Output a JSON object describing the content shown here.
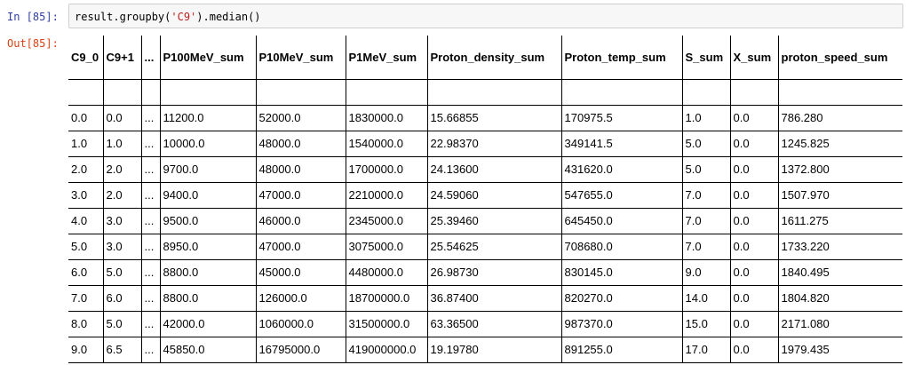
{
  "cell": {
    "in_prompt": "In [85]:",
    "out_prompt": "Out[85]:",
    "code_prefix": "result.groupby(",
    "code_string": "'C9'",
    "code_suffix": ").median()"
  },
  "table": {
    "columns": [
      "C9_0",
      "C9+1",
      "...",
      "P100MeV_sum",
      "P10MeV_sum",
      "P1MeV_sum",
      "Proton_density_sum",
      "Proton_temp_sum",
      "S_sum",
      "X_sum",
      "proton_speed_sum"
    ],
    "rows": [
      [
        "0.0",
        "0.0",
        "...",
        "11200.0",
        "52000.0",
        "1830000.0",
        "15.66855",
        "170975.5",
        "1.0",
        "0.0",
        "786.280"
      ],
      [
        "1.0",
        "1.0",
        "...",
        "10000.0",
        "48000.0",
        "1540000.0",
        "22.98370",
        "349141.5",
        "5.0",
        "0.0",
        "1245.825"
      ],
      [
        "2.0",
        "2.0",
        "...",
        "9700.0",
        "48000.0",
        "1700000.0",
        "24.13600",
        "431620.0",
        "5.0",
        "0.0",
        "1372.800"
      ],
      [
        "3.0",
        "2.0",
        "...",
        "9400.0",
        "47000.0",
        "2210000.0",
        "24.59060",
        "547655.0",
        "7.0",
        "0.0",
        "1507.970"
      ],
      [
        "4.0",
        "3.0",
        "...",
        "9500.0",
        "46000.0",
        "2345000.0",
        "25.39460",
        "645450.0",
        "7.0",
        "0.0",
        "1611.275"
      ],
      [
        "5.0",
        "3.0",
        "...",
        "8950.0",
        "47000.0",
        "3075000.0",
        "25.54625",
        "708680.0",
        "7.0",
        "0.0",
        "1733.220"
      ],
      [
        "6.0",
        "5.0",
        "...",
        "8800.0",
        "45000.0",
        "4480000.0",
        "26.98730",
        "830145.0",
        "9.0",
        "0.0",
        "1840.495"
      ],
      [
        "7.0",
        "6.0",
        "...",
        "8800.0",
        "126000.0",
        "18700000.0",
        "36.87400",
        "820270.0",
        "14.0",
        "0.0",
        "1804.820"
      ],
      [
        "8.0",
        "5.0",
        "...",
        "42000.0",
        "1060000.0",
        "31500000.0",
        "63.36500",
        "987370.0",
        "15.0",
        "0.0",
        "2171.080"
      ],
      [
        "9.0",
        "6.5",
        "...",
        "45850.0",
        "16795000.0",
        "419000000.0",
        "19.19780",
        "891255.0",
        "17.0",
        "0.0",
        "1979.435"
      ]
    ]
  }
}
